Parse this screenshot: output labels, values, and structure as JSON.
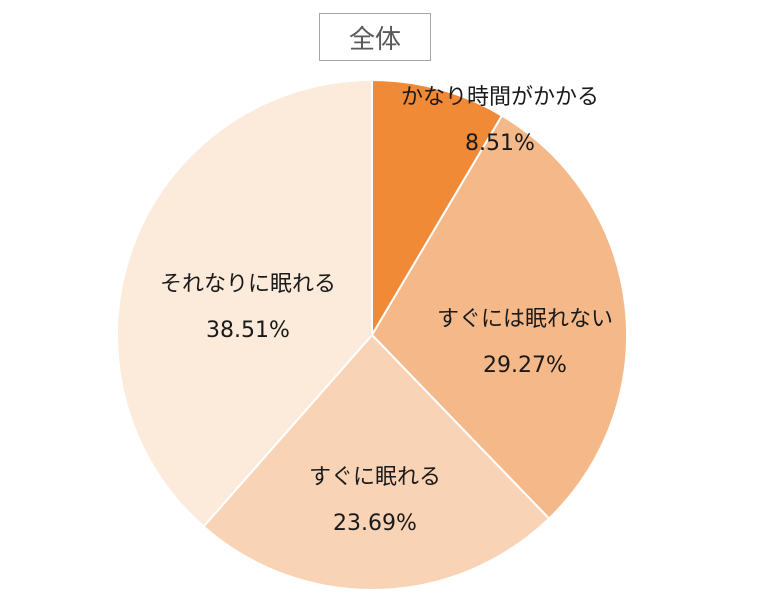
{
  "chart_data": {
    "type": "pie",
    "title": "全体",
    "start_angle_deg": 0,
    "direction": "clockwise",
    "slices": [
      {
        "label": "かなり時間がかかる",
        "value": 8.51,
        "value_text": "8.51%",
        "color": "#f08a37"
      },
      {
        "label": "すぐには眠れない",
        "value": 29.27,
        "value_text": "29.27%",
        "color": "#f5b889"
      },
      {
        "label": "すぐに眠れる",
        "value": 23.69,
        "value_text": "23.69%",
        "color": "#f9d3b6"
      },
      {
        "label": "それなりに眠れる",
        "value": 38.51,
        "value_text": "38.51%",
        "color": "#fceadb"
      }
    ]
  }
}
